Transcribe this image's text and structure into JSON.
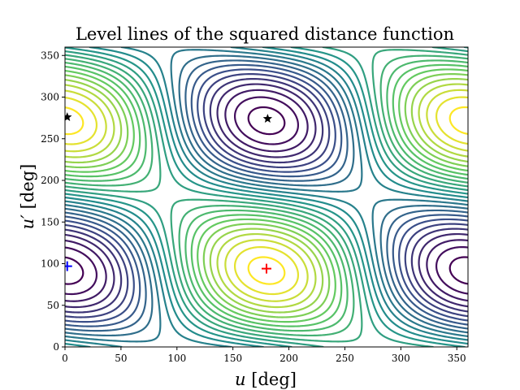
{
  "chart_data": {
    "type": "contour",
    "title": "Level lines of the squared distance function",
    "xlabel": {
      "var": "u",
      "unit": "[deg]"
    },
    "ylabel": {
      "var": "u′",
      "unit": "[deg]"
    },
    "xlim": [
      0,
      360
    ],
    "ylim": [
      0,
      360
    ],
    "xticks": [
      0,
      50,
      100,
      150,
      200,
      250,
      300,
      350
    ],
    "yticks": [
      0,
      50,
      100,
      150,
      200,
      250,
      300,
      350
    ],
    "grid": false,
    "colormap": [
      "#440154",
      "#3b528b",
      "#21918c",
      "#5ec962",
      "#fde725"
    ],
    "markers": [
      {
        "name": "maximum",
        "symbol": "plus",
        "color": "#ff0000",
        "x": 180,
        "y": 94
      },
      {
        "name": "minimum",
        "symbol": "plus",
        "color": "#0000ff",
        "x": 2,
        "y": 97
      },
      {
        "name": "saddle-1",
        "symbol": "star",
        "color": "#000000",
        "x": 181,
        "y": 274
      },
      {
        "name": "saddle-2",
        "symbol": "star",
        "color": "#000000",
        "x": 2,
        "y": 276
      }
    ]
  }
}
